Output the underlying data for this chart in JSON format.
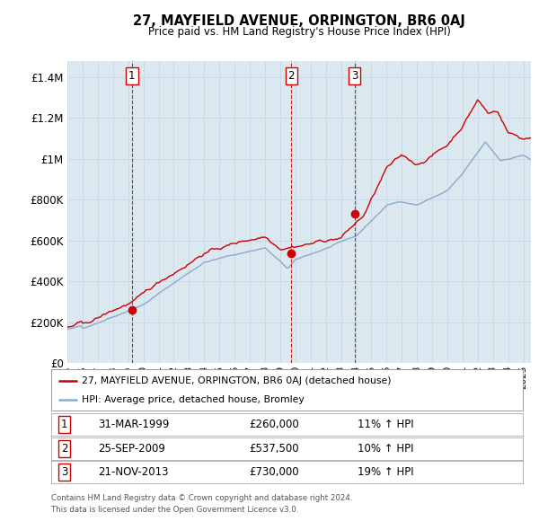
{
  "title": "27, MAYFIELD AVENUE, ORPINGTON, BR6 0AJ",
  "subtitle": "Price paid vs. HM Land Registry's House Price Index (HPI)",
  "ylabel_ticks": [
    "£0",
    "£200K",
    "£400K",
    "£600K",
    "£800K",
    "£1M",
    "£1.2M",
    "£1.4M"
  ],
  "ytick_vals": [
    0,
    200000,
    400000,
    600000,
    800000,
    1000000,
    1200000,
    1400000
  ],
  "ylim": [
    0,
    1480000
  ],
  "xlim_start": 1995.0,
  "xlim_end": 2025.5,
  "red_color": "#cc0000",
  "blue_color": "#88aacc",
  "grid_color": "#c8d8e8",
  "bg_color": "#dce8f0",
  "sale_dates": [
    1999.25,
    2009.73,
    2013.9
  ],
  "sale_prices": [
    260000,
    537500,
    730000
  ],
  "sale_labels": [
    "1",
    "2",
    "3"
  ],
  "sale_date_strs": [
    "31-MAR-1999",
    "25-SEP-2009",
    "21-NOV-2013"
  ],
  "sale_price_strs": [
    "£260,000",
    "£537,500",
    "£730,000"
  ],
  "sale_hpi_strs": [
    "11% ↑ HPI",
    "10% ↑ HPI",
    "19% ↑ HPI"
  ],
  "legend_red_label": "27, MAYFIELD AVENUE, ORPINGTON, BR6 0AJ (detached house)",
  "legend_blue_label": "HPI: Average price, detached house, Bromley",
  "footnote1": "Contains HM Land Registry data © Crown copyright and database right 2024.",
  "footnote2": "This data is licensed under the Open Government Licence v3.0."
}
